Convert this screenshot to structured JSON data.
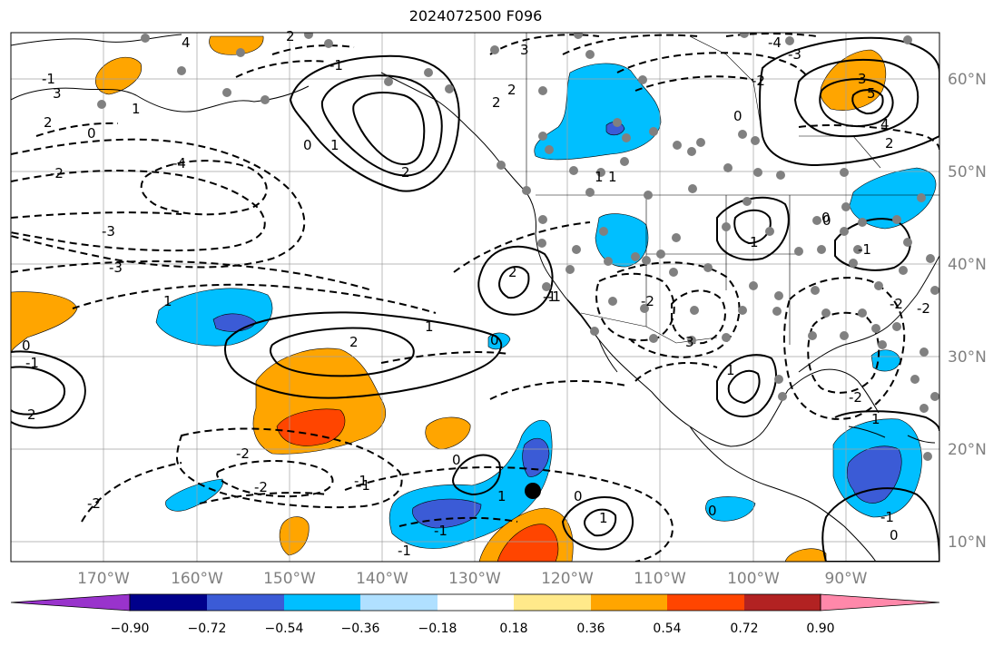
{
  "title": "2024072500 F096",
  "map": {
    "lon_ticks": [
      "170°W",
      "160°W",
      "150°W",
      "140°W",
      "130°W",
      "120°W",
      "110°W",
      "100°W",
      "90°W"
    ],
    "lat_ticks": [
      "60°N",
      "50°N",
      "40°N",
      "30°N",
      "20°N",
      "10°N"
    ],
    "contour_labels": [
      "3",
      "2",
      "1",
      "0",
      "-1",
      "-2",
      "-3",
      "-4",
      "3",
      "2",
      "1",
      "0",
      "1",
      "2",
      "4",
      "5",
      "-1",
      "0",
      "2",
      "1",
      "0",
      "-1",
      "-2",
      "-3",
      "1",
      "2",
      "-1",
      "-2",
      "0",
      "1",
      "-1",
      "0",
      "1",
      "-1",
      "-2",
      "0",
      "-2",
      "2",
      "3",
      "-1",
      "-2",
      "1",
      "-1",
      "0",
      "1",
      "-1",
      "-2",
      "0",
      "-3",
      "-4",
      "1",
      "2",
      "0",
      "-2",
      "3",
      "4",
      "-1",
      "-1",
      "2",
      "0",
      "2",
      "-2",
      "1"
    ],
    "colors": {
      "contour": "#000000",
      "station_dot": "#808080",
      "grid": "#a0a0a0"
    }
  },
  "colorbar": {
    "ticks": [
      "−0.90",
      "−0.72",
      "−0.54",
      "−0.36",
      "−0.18",
      "0.18",
      "0.36",
      "0.54",
      "0.72",
      "0.90"
    ],
    "colors": [
      "#9933cc",
      "#00008b",
      "#3b5bd6",
      "#00bfff",
      "#b0e0ff",
      "#ffffff",
      "#ffe98a",
      "#ffa500",
      "#ff4500",
      "#b22222",
      "#ff88aa"
    ]
  }
}
